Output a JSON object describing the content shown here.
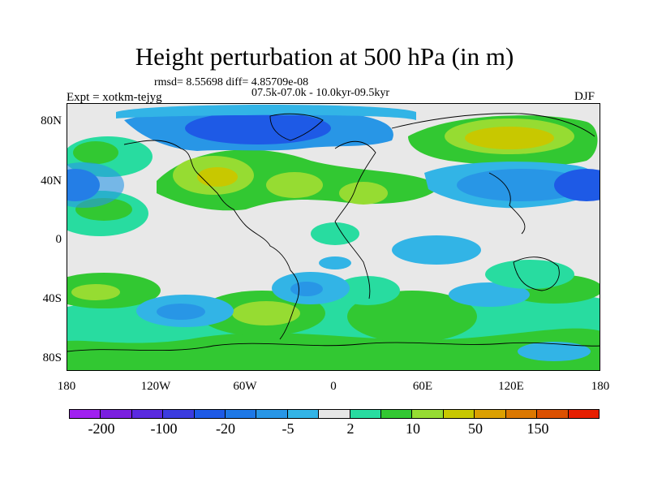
{
  "title": "Height perturbation at 500 hPa (in m)",
  "stats": "rmsd= 8.55698 diff= 4.85709e-08",
  "periods": "07.5k-07.0k - 10.0kyr-09.5kyr",
  "expt": "Expt = xotkm-tejyg",
  "season": "DJF",
  "lat_labels": [
    "80N",
    "40N",
    "0",
    "40S",
    "80S"
  ],
  "lon_labels": [
    "180",
    "120W",
    "60W",
    "0",
    "60E",
    "120E",
    "180"
  ],
  "colorbar": {
    "colors": [
      "#a020f0",
      "#7b1fe0",
      "#5a2ae0",
      "#3c3ce0",
      "#1e5ae6",
      "#1e78e6",
      "#2896e6",
      "#32b4e6",
      "#e6e6e6",
      "#28dca0",
      "#32c832",
      "#96dc32",
      "#c8c800",
      "#dca000",
      "#dc7800",
      "#dc5000",
      "#e61e00"
    ],
    "labels": [
      "-200",
      "-100",
      "-20",
      "-5",
      "2",
      "10",
      "50",
      "150"
    ]
  },
  "field_colors": {
    "strong_neg": "#1e5ae6",
    "neg": "#2896e6",
    "weak_neg": "#32b4e6",
    "neutral": "#e6e6e6",
    "weak_pos": "#28dca0",
    "pos": "#32c832",
    "pos2": "#96dc32",
    "strong_pos": "#c8c800"
  }
}
